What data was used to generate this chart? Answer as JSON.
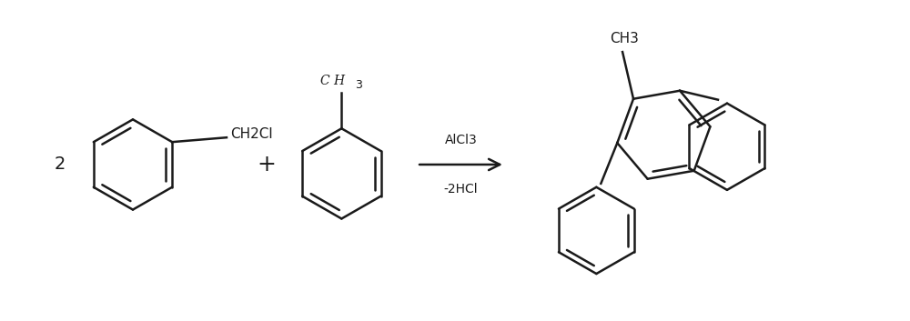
{
  "bg_color": "#ffffff",
  "line_color": "#1a1a1a",
  "line_width": 1.8,
  "font_size_label": 11,
  "font_size_number": 14,
  "fig_width": 10.0,
  "fig_height": 3.53,
  "dpi": 100,
  "arrow_label_top": "AlCl3",
  "arrow_label_bot": "-2HCl",
  "plus_sign": "+",
  "coefficient": "2",
  "reactant1_label": "CH2Cl",
  "reactant2_label": "C H",
  "reactant2_sub": "3",
  "product_label_top": "CH3"
}
